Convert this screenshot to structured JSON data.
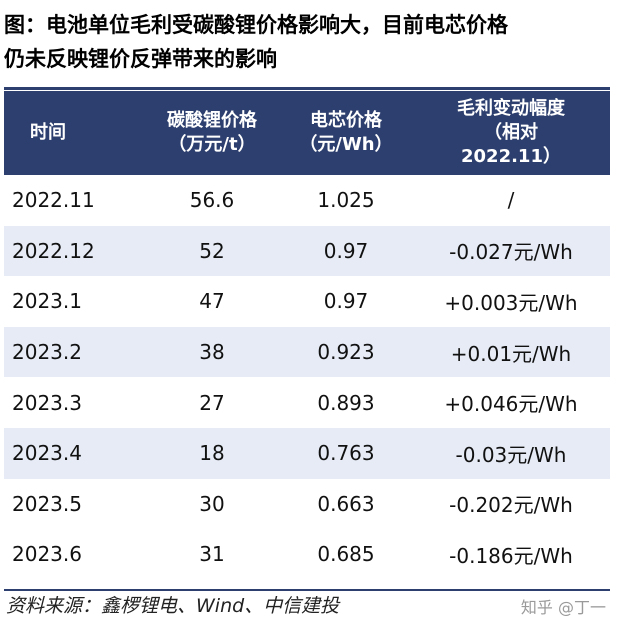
{
  "title": {
    "line1": "图：电池单位毛利受碳酸锂价格影响大，目前电芯价格",
    "line2": "仍未反映锂价反弹带来的影响"
  },
  "table": {
    "headers": [
      [
        "时间"
      ],
      [
        "碳酸锂价格",
        "（万元/t）"
      ],
      [
        "电芯价格",
        "（元/Wh）"
      ],
      [
        "毛利变动幅度",
        "（相对",
        "2022.11）"
      ]
    ],
    "rows": [
      [
        "2022.11",
        "56.6",
        "1.025",
        "/"
      ],
      [
        "2022.12",
        "52",
        "0.97",
        "-0.027元/Wh"
      ],
      [
        "2023.1",
        "47",
        "0.97",
        "+0.003元/Wh"
      ],
      [
        "2023.2",
        "38",
        "0.923",
        "+0.01元/Wh"
      ],
      [
        "2023.3",
        "27",
        "0.893",
        "+0.046元/Wh"
      ],
      [
        "2023.4",
        "18",
        "0.763",
        "-0.03元/Wh"
      ],
      [
        "2023.5",
        "30",
        "0.663",
        "-0.202元/Wh"
      ],
      [
        "2023.6",
        "31",
        "0.685",
        "-0.186元/Wh"
      ]
    ]
  },
  "source": "资料来源：鑫椤锂电、Wind、中信建投",
  "watermark": "知乎 @丁一",
  "colors": {
    "header_bg": "#2d3f6e",
    "alt_row_bg": "#e6ebf5"
  }
}
